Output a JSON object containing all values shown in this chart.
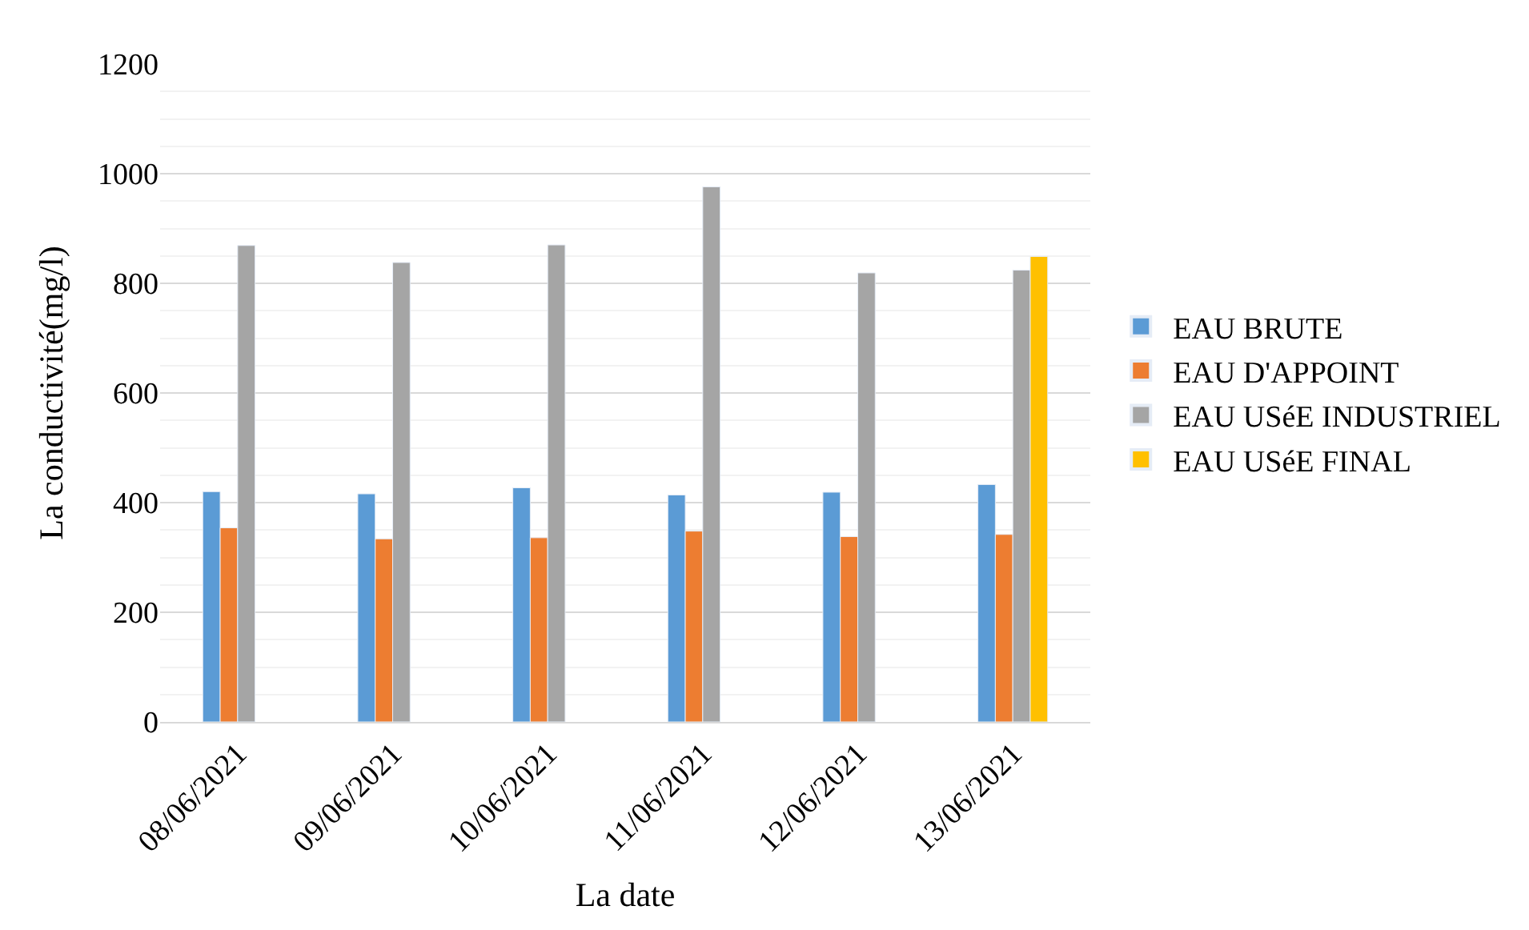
{
  "chart_data": {
    "type": "bar",
    "xlabel": "La date",
    "ylabel": "La conductivité(mg/l)",
    "categories": [
      "08/06/2021",
      "09/06/2021",
      "10/06/2021",
      "11/06/2021",
      "12/06/2021",
      "13/06/2021"
    ],
    "series": [
      {
        "name": "EAU BRUTE",
        "color": "#5b9bd5",
        "values": [
          420,
          416,
          427,
          414,
          419,
          433
        ]
      },
      {
        "name": "EAU D'APPOINT",
        "color": "#ed7d31",
        "values": [
          354,
          334,
          336,
          348,
          338,
          342
        ]
      },
      {
        "name": "EAU USéE INDUSTRIEL",
        "color": "#a5a5a5",
        "values": [
          869,
          838,
          870,
          976,
          819,
          824
        ]
      },
      {
        "name": "EAU USéE FINAL",
        "color": "#ffc000",
        "values": [
          null,
          null,
          null,
          null,
          null,
          849
        ]
      }
    ],
    "ylim": [
      0,
      1200
    ],
    "yticks": [
      0,
      200,
      400,
      600,
      800,
      1000,
      1200
    ],
    "grid": "y",
    "legend": "right"
  }
}
